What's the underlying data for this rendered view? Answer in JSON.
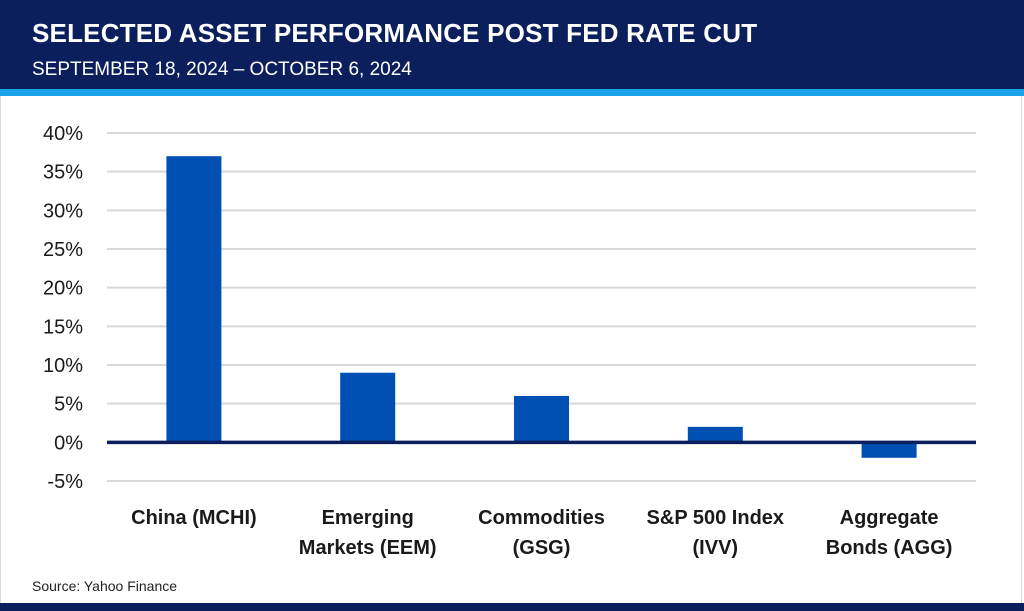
{
  "header": {
    "title": "SELECTED ASSET PERFORMANCE POST FED RATE CUT",
    "subtitle": "SEPTEMBER 18, 2024 – OCTOBER 6, 2024"
  },
  "footer": {
    "source": "Source: Yahoo Finance"
  },
  "colors": {
    "header_bg": "#0b1f5c",
    "accent": "#1aa3e8",
    "bar": "#0050b3",
    "zero_line": "#0b1f5c",
    "grid": "#d9d9d9"
  },
  "chart_data": {
    "type": "bar",
    "title": "SELECTED ASSET PERFORMANCE POST FED RATE CUT",
    "subtitle": "SEPTEMBER 18, 2024 – OCTOBER 6, 2024",
    "categories": [
      [
        "China (MCHI)"
      ],
      [
        "Emerging",
        "Markets (EEM)"
      ],
      [
        "Commodities",
        "(GSG)"
      ],
      [
        "S&P 500 Index",
        "(IVV)"
      ],
      [
        "Aggregate",
        "Bonds (AGG)"
      ]
    ],
    "values": [
      37,
      9,
      6,
      2,
      -2
    ],
    "ylim": [
      -5,
      40
    ],
    "yticks": [
      40,
      35,
      30,
      25,
      20,
      15,
      10,
      5,
      0,
      -5
    ],
    "ytick_labels": [
      "40%",
      "35%",
      "30%",
      "25%",
      "20%",
      "15%",
      "10%",
      "5%",
      "0%",
      "-5%"
    ],
    "xlabel": "",
    "ylabel": "",
    "grid": true
  }
}
